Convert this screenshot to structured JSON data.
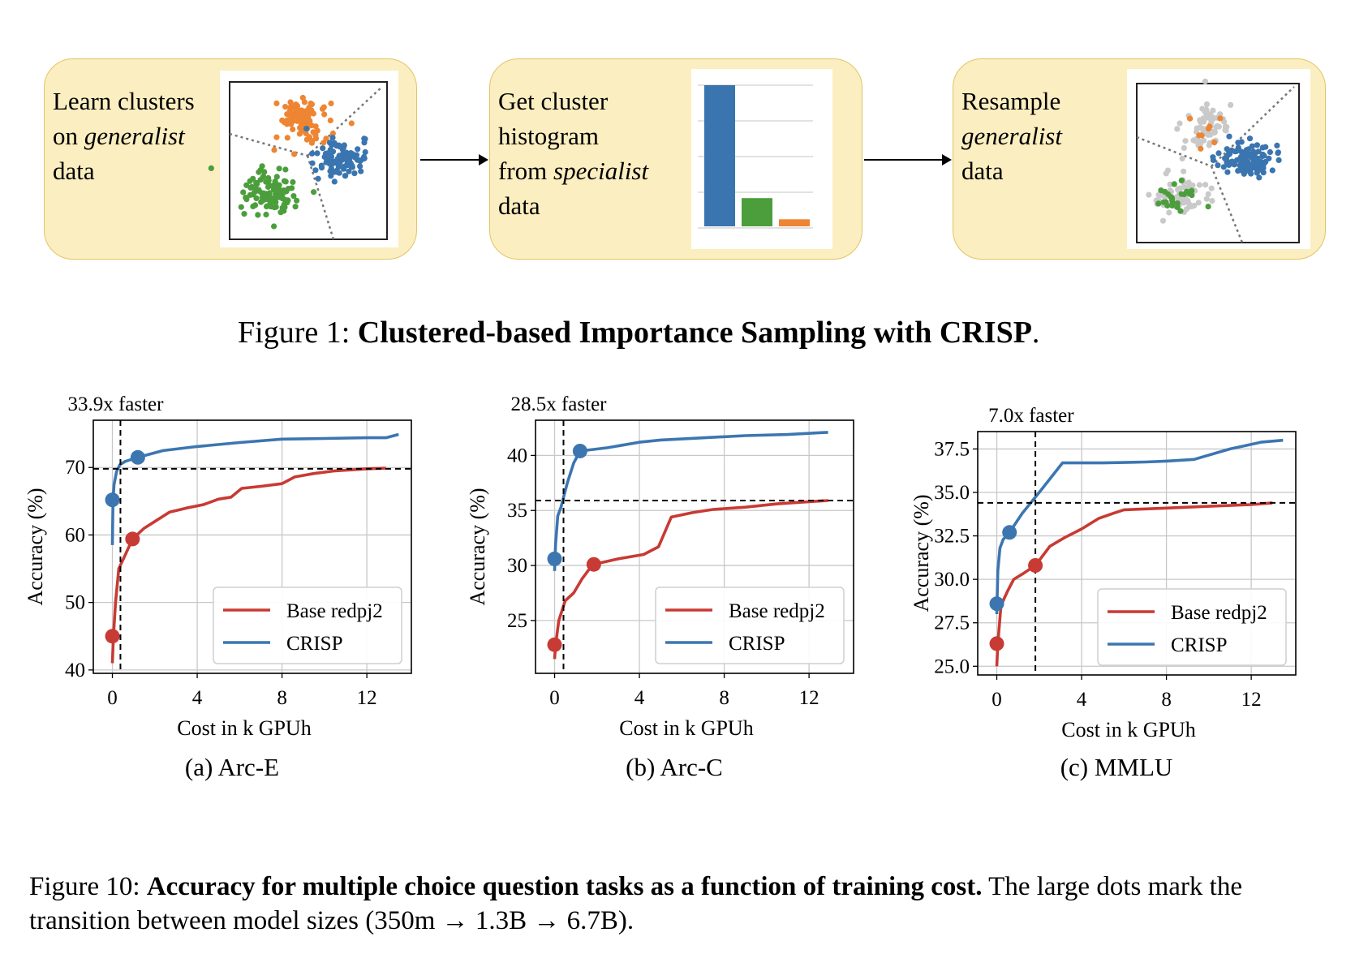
{
  "figure1": {
    "boxes": [
      {
        "lines": [
          [
            {
              "t": "Learn clusters",
              "i": false
            }
          ],
          [
            {
              "t": "on ",
              "i": false
            },
            {
              "t": "generalist",
              "i": true
            }
          ],
          [
            {
              "t": "data",
              "i": false
            }
          ]
        ]
      },
      {
        "lines": [
          [
            {
              "t": "Get cluster",
              "i": false
            }
          ],
          [
            {
              "t": "histogram",
              "i": false
            }
          ],
          [
            {
              "t": "from ",
              "i": false
            },
            {
              "t": "specialist",
              "i": true
            }
          ],
          [
            {
              "t": "data",
              "i": false
            }
          ]
        ]
      },
      {
        "lines": [
          [
            {
              "t": "Resample",
              "i": false
            }
          ],
          [
            {
              "t": "generalist",
              "i": true
            }
          ],
          [
            {
              "t": "data",
              "i": false
            }
          ]
        ]
      }
    ],
    "histogram": {
      "values": [
        1.0,
        0.2,
        0.05
      ],
      "colors": [
        "#3a75b0",
        "#4c9e3c",
        "#ee8533"
      ]
    },
    "colors": {
      "orange": "#ee8533",
      "blue": "#3a75b0",
      "green": "#4c9e3c",
      "gray": "#c9c9c9",
      "box_fill": "#fbeec0"
    },
    "caption_prefix": "Figure 1: ",
    "caption_bold": "Clustered-based Importance Sampling with CRISP",
    "caption_suffix": "."
  },
  "figure10": {
    "caption_prefix": "Figure 10: ",
    "caption_bold": "Accuracy for multiple choice question tasks as a function of training cost.",
    "caption_rest": " The large dots mark the transition between model sizes (350m → 1.3B → 6.7B)."
  },
  "chart_data": [
    {
      "type": "line",
      "subcaption": "(a) Arc-E",
      "annotation": "33.9x faster",
      "xlabel": "Cost in k GPUh",
      "ylabel": "Accuracy (%)",
      "xlim": [
        -0.9,
        14.1
      ],
      "ylim": [
        39.5,
        77.0
      ],
      "xticks": [
        0,
        4,
        8,
        12
      ],
      "yticks": [
        40,
        50,
        60,
        70
      ],
      "ytick_labels": [
        "40",
        "50",
        "60",
        "70"
      ],
      "grid": true,
      "legend": "lower-right",
      "hline": 69.8,
      "vline": 0.38,
      "series": [
        {
          "name": "Base redpj2",
          "color": "#c83a34",
          "x": [
            0,
            0.05,
            0.15,
            0.3,
            0.6,
            0.95,
            1.5,
            2.0,
            2.7,
            3.5,
            4.3,
            5.0,
            5.6,
            6.1,
            7.0,
            8.0,
            8.6,
            9.5,
            10.5,
            12.0,
            12.9
          ],
          "y": [
            41,
            45,
            50,
            55,
            57,
            59.4,
            61,
            62,
            63.4,
            64,
            64.5,
            65.3,
            65.6,
            66.9,
            67.2,
            67.6,
            68.6,
            69.1,
            69.5,
            69.8,
            69.9
          ],
          "markers": [
            [
              0,
              45
            ],
            [
              0.95,
              59.4
            ]
          ]
        },
        {
          "name": "CRISP",
          "color": "#3c76b1",
          "x": [
            0,
            0.03,
            0.08,
            0.2,
            0.35,
            0.6,
            1.2,
            2.4,
            4.0,
            6.0,
            8.0,
            10.0,
            12.0,
            12.9,
            13.5
          ],
          "y": [
            58.5,
            65.2,
            67.5,
            69.4,
            70.4,
            70.9,
            71.5,
            72.5,
            73.1,
            73.7,
            74.2,
            74.3,
            74.4,
            74.4,
            74.9
          ],
          "markers": [
            [
              0,
              65.2
            ],
            [
              1.2,
              71.5
            ]
          ]
        }
      ]
    },
    {
      "type": "line",
      "subcaption": "(b) Arc-C",
      "annotation": "28.5x faster",
      "xlabel": "Cost in k GPUh",
      "ylabel": "Accuracy (%)",
      "xlim": [
        -0.9,
        14.1
      ],
      "ylim": [
        20.2,
        43.2
      ],
      "xticks": [
        0,
        4,
        8,
        12
      ],
      "yticks": [
        25,
        30,
        35,
        40
      ],
      "ytick_labels": [
        "25",
        "30",
        "35",
        "40"
      ],
      "grid": true,
      "legend": "lower-right",
      "hline": 35.9,
      "vline": 0.42,
      "series": [
        {
          "name": "Base redpj2",
          "color": "#c83a34",
          "x": [
            0,
            0.05,
            0.2,
            0.5,
            0.9,
            1.3,
            1.8,
            2.3,
            3.0,
            4.2,
            4.9,
            5.5,
            6.5,
            7.5,
            9.0,
            10.5,
            12.0,
            12.9
          ],
          "y": [
            21.5,
            22.8,
            25.0,
            26.8,
            27.5,
            28.8,
            30.1,
            30.3,
            30.6,
            31.0,
            31.7,
            34.4,
            34.8,
            35.1,
            35.3,
            35.6,
            35.8,
            35.9
          ],
          "markers": [
            [
              0,
              22.8
            ],
            [
              1.85,
              30.1
            ]
          ]
        },
        {
          "name": "CRISP",
          "color": "#3c76b1",
          "x": [
            0,
            0.02,
            0.05,
            0.15,
            0.3,
            0.6,
            0.9,
            1.2,
            2.5,
            4.0,
            5.0,
            7.0,
            9.0,
            11.0,
            12.9
          ],
          "y": [
            29.5,
            30.6,
            32.0,
            34.5,
            35.3,
            37.5,
            39.3,
            40.4,
            40.7,
            41.2,
            41.4,
            41.6,
            41.8,
            41.9,
            42.1
          ],
          "markers": [
            [
              0,
              30.6
            ],
            [
              1.2,
              40.4
            ]
          ]
        }
      ]
    },
    {
      "type": "line",
      "subcaption": "(c) MMLU",
      "annotation": "7.0x faster",
      "xlabel": "Cost in k GPUh",
      "ylabel": "Accuracy (%)",
      "xlim": [
        -0.9,
        14.1
      ],
      "ylim": [
        24.5,
        38.5
      ],
      "xticks": [
        0,
        4,
        8,
        12
      ],
      "yticks": [
        25.0,
        27.5,
        30.0,
        32.5,
        35.0,
        37.5
      ],
      "ytick_labels": [
        "25.0",
        "27.5",
        "30.0",
        "32.5",
        "35.0",
        "37.5"
      ],
      "grid": true,
      "legend": "lower-right",
      "hline": 34.4,
      "vline": 1.82,
      "series": [
        {
          "name": "Base redpj2",
          "color": "#c83a34",
          "x": [
            0,
            0.05,
            0.2,
            0.5,
            0.8,
            1.2,
            1.82,
            2.5,
            3.2,
            4.0,
            4.8,
            5.5,
            6.0,
            8.0,
            10.0,
            12.0,
            13.0
          ],
          "y": [
            25.0,
            26.3,
            28.5,
            29.3,
            30.0,
            30.3,
            30.8,
            31.9,
            32.4,
            32.9,
            33.5,
            33.8,
            34.0,
            34.1,
            34.2,
            34.3,
            34.4
          ],
          "markers": [
            [
              0,
              26.3
            ],
            [
              1.82,
              30.8
            ]
          ]
        },
        {
          "name": "CRISP",
          "color": "#3c76b1",
          "x": [
            0,
            0.01,
            0.05,
            0.15,
            0.3,
            0.6,
            1.2,
            2.0,
            3.1,
            5.0,
            7.0,
            8.0,
            9.3,
            11.0,
            12.5,
            13.5
          ],
          "y": [
            28.0,
            28.6,
            30.5,
            31.8,
            32.3,
            32.7,
            33.8,
            35.0,
            36.7,
            36.7,
            36.75,
            36.8,
            36.9,
            37.5,
            37.9,
            38.0
          ],
          "markers": [
            [
              0,
              28.6
            ],
            [
              0.6,
              32.7
            ]
          ]
        }
      ]
    }
  ]
}
